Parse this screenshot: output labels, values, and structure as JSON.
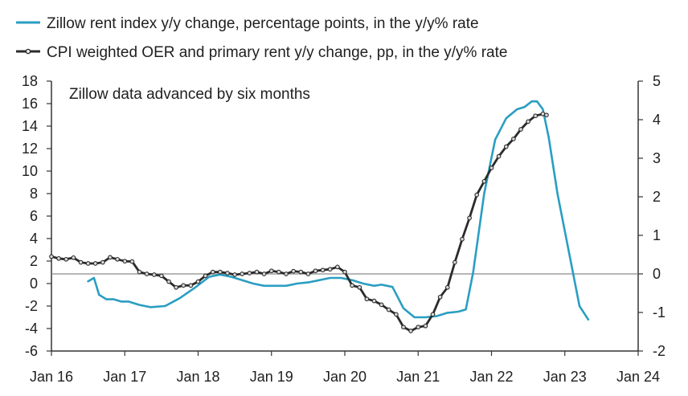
{
  "chart_data": {
    "type": "line",
    "annotation": "Zillow data advanced by six months",
    "legend": "top",
    "grid": false,
    "colors": {
      "zillow": "#2a9ec2",
      "cpi": "#2b2b2b",
      "zero_line": "#8a8a8a",
      "axis": "#333333"
    },
    "x_ticks": [
      "Jan 16",
      "Jan 17",
      "Jan 18",
      "Jan 19",
      "Jan 20",
      "Jan 21",
      "Jan 22",
      "Jan 23",
      "Jan 24"
    ],
    "x_range": [
      2016.0,
      2024.0
    ],
    "y_left": {
      "range": [
        -6,
        18
      ],
      "ticks": [
        18,
        16,
        14,
        12,
        10,
        8,
        6,
        4,
        2,
        0,
        -2,
        -4,
        -6
      ]
    },
    "y_right": {
      "range": [
        -2,
        5
      ],
      "ticks": [
        5,
        4,
        3,
        2,
        1,
        0,
        -1,
        -2
      ]
    },
    "series": [
      {
        "name": "Zillow rent index y/y change, percentage points, in the y/y% rate",
        "axis": "left",
        "marker": false,
        "x": [
          2016.5,
          2016.58,
          2016.65,
          2016.75,
          2016.85,
          2016.95,
          2017.05,
          2017.2,
          2017.35,
          2017.55,
          2017.75,
          2017.95,
          2018.15,
          2018.3,
          2018.45,
          2018.6,
          2018.75,
          2018.9,
          2019.05,
          2019.2,
          2019.35,
          2019.5,
          2019.65,
          2019.8,
          2019.95,
          2020.1,
          2020.25,
          2020.4,
          2020.5,
          2020.65,
          2020.8,
          2020.95,
          2021.1,
          2021.25,
          2021.4,
          2021.55,
          2021.65,
          2021.75,
          2021.9,
          2022.05,
          2022.2,
          2022.35,
          2022.45,
          2022.55,
          2022.62,
          2022.7,
          2022.78,
          2022.9,
          2023.05,
          2023.2,
          2023.32
        ],
        "values": [
          0.2,
          0.5,
          -1.0,
          -1.4,
          -1.4,
          -1.6,
          -1.6,
          -1.9,
          -2.1,
          -2.0,
          -1.3,
          -0.4,
          0.6,
          0.8,
          0.6,
          0.3,
          0.0,
          -0.2,
          -0.2,
          -0.2,
          0.0,
          0.1,
          0.3,
          0.5,
          0.5,
          0.3,
          0.0,
          -0.2,
          -0.1,
          -0.3,
          -2.2,
          -3.0,
          -3.0,
          -2.9,
          -2.6,
          -2.5,
          -2.3,
          1.0,
          8.0,
          12.8,
          14.7,
          15.5,
          15.7,
          16.2,
          16.2,
          15.5,
          13.0,
          8.0,
          3.0,
          -2.0,
          -3.2
        ]
      },
      {
        "name": "CPI weighted OER and primary rent y/y change, pp, in the y/y% rate",
        "axis": "right",
        "marker": true,
        "x": [
          2016.0,
          2016.1,
          2016.2,
          2016.3,
          2016.4,
          2016.5,
          2016.6,
          2016.7,
          2016.8,
          2016.9,
          2017.0,
          2017.1,
          2017.2,
          2017.3,
          2017.4,
          2017.5,
          2017.6,
          2017.7,
          2017.8,
          2017.9,
          2018.0,
          2018.1,
          2018.2,
          2018.3,
          2018.4,
          2018.5,
          2018.6,
          2018.7,
          2018.8,
          2018.9,
          2019.0,
          2019.1,
          2019.2,
          2019.3,
          2019.4,
          2019.5,
          2019.6,
          2019.7,
          2019.8,
          2019.9,
          2020.0,
          2020.1,
          2020.2,
          2020.3,
          2020.4,
          2020.5,
          2020.6,
          2020.7,
          2020.8,
          2020.9,
          2021.0,
          2021.1,
          2021.2,
          2021.3,
          2021.4,
          2021.5,
          2021.6,
          2021.7,
          2021.8,
          2021.9,
          2022.0,
          2022.1,
          2022.2,
          2022.3,
          2022.4,
          2022.5,
          2022.6,
          2022.7,
          2022.75
        ],
        "values": [
          0.45,
          0.4,
          0.38,
          0.42,
          0.3,
          0.27,
          0.27,
          0.3,
          0.43,
          0.38,
          0.33,
          0.32,
          0.05,
          0.0,
          -0.02,
          -0.05,
          -0.2,
          -0.35,
          -0.3,
          -0.3,
          -0.2,
          -0.05,
          0.05,
          0.05,
          0.02,
          -0.02,
          0.0,
          0.02,
          0.05,
          0.0,
          0.08,
          0.05,
          0.0,
          0.07,
          0.05,
          0.0,
          0.08,
          0.1,
          0.12,
          0.18,
          0.05,
          -0.3,
          -0.35,
          -0.65,
          -0.7,
          -0.8,
          -0.93,
          -1.05,
          -1.38,
          -1.48,
          -1.38,
          -1.35,
          -1.05,
          -0.6,
          -0.35,
          0.3,
          0.9,
          1.45,
          2.05,
          2.4,
          2.75,
          3.05,
          3.3,
          3.5,
          3.75,
          3.95,
          4.1,
          4.15,
          4.12
        ]
      }
    ]
  }
}
